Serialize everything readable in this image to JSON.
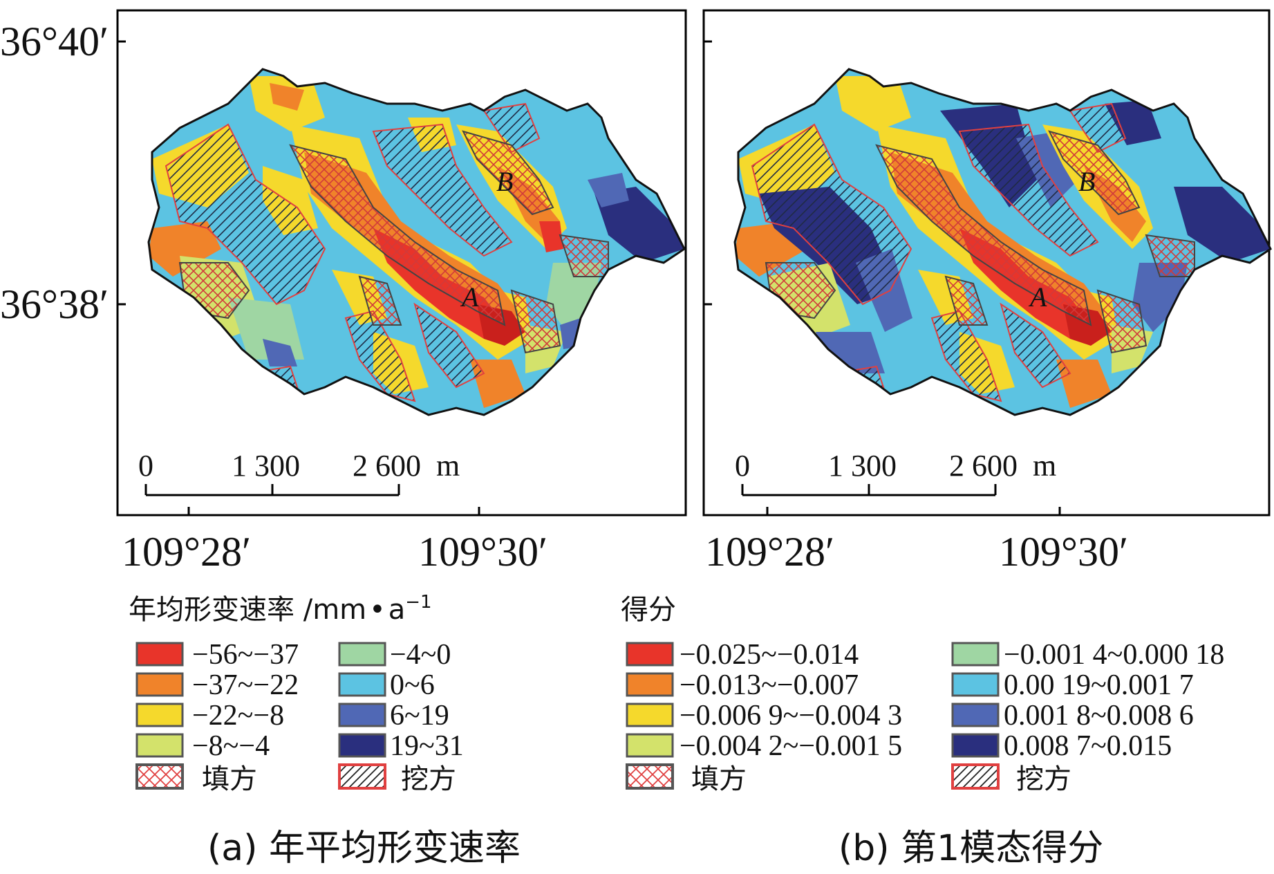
{
  "colors": {
    "red": "#e8342a",
    "orange": "#f0832a",
    "yellow": "#f5d92c",
    "lightgreen": "#d3e26b",
    "green": "#9fd6a3",
    "cyan": "#5cc3e2",
    "blue": "#5068b5",
    "darkblue": "#2a2f7e",
    "fill_hatch": "#e04040",
    "cut_hatch": "#222222",
    "cut_border": "#e04040",
    "fill_border": "#555555"
  },
  "panel_a": {
    "lat_labels": [
      "36°40′",
      "36°38′"
    ],
    "lon_labels": [
      "109°28′",
      "109°30′"
    ],
    "scale_labels": [
      "0",
      "1 300",
      "2 600  m"
    ],
    "point_labels": [
      "A",
      "B"
    ],
    "caption": "(a) 年平均形变速率",
    "legend": {
      "title": "年均形变速率 /mm",
      "title_dot": "•",
      "title_unit": "a",
      "title_exp": "−1",
      "items_left": [
        {
          "label": "−56~−37",
          "color_key": "red"
        },
        {
          "label": "−37~−22",
          "color_key": "orange"
        },
        {
          "label": "−22~−8",
          "color_key": "yellow"
        },
        {
          "label": "−8~−4",
          "color_key": "lightgreen"
        }
      ],
      "items_right": [
        {
          "label": "−4~0",
          "color_key": "green"
        },
        {
          "label": "0~6",
          "color_key": "cyan"
        },
        {
          "label": "6~19",
          "color_key": "blue"
        },
        {
          "label": "19~31",
          "color_key": "darkblue"
        }
      ],
      "fill_label": "填方",
      "cut_label": "挖方"
    }
  },
  "panel_b": {
    "lon_labels": [
      "109°28′",
      "109°30′"
    ],
    "scale_labels": [
      "0",
      "1 300",
      "2 600  m"
    ],
    "point_labels": [
      "A",
      "B"
    ],
    "caption": "(b) 第1模态得分",
    "legend": {
      "title": "得分",
      "items_left": [
        {
          "label": "−0.025~−0.014",
          "color_key": "red"
        },
        {
          "label": "−0.013~−0.007",
          "color_key": "orange"
        },
        {
          "label": "−0.006 9~−0.004 3",
          "color_key": "yellow"
        },
        {
          "label": "−0.004 2~−0.001 5",
          "color_key": "lightgreen"
        }
      ],
      "items_right": [
        {
          "label": "−0.001 4~0.000 18",
          "color_key": "green"
        },
        {
          "label": "0.00 19~0.001 7",
          "color_key": "cyan"
        },
        {
          "label": "0.001 8~0.008 6",
          "color_key": "blue"
        },
        {
          "label": "0.008 7~0.015",
          "color_key": "darkblue"
        }
      ],
      "fill_label": "填方",
      "cut_label": "挖方"
    }
  }
}
